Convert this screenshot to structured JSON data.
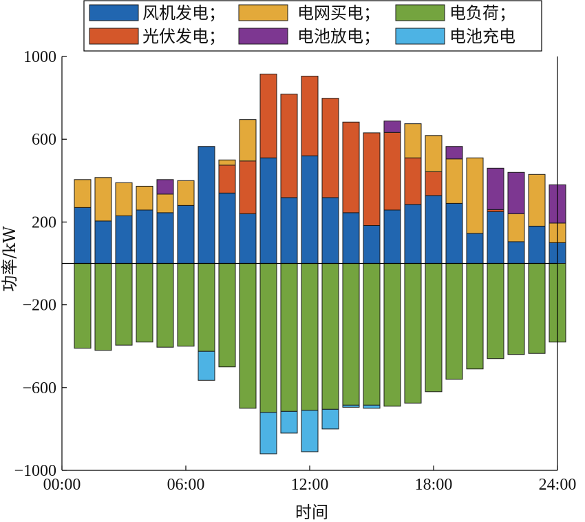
{
  "chart_data": {
    "type": "bar",
    "stacked": true,
    "xlabel": "时间",
    "ylabel": "功率/kW",
    "ylim": [
      -1000,
      1000
    ],
    "xlim": [
      0,
      24
    ],
    "yticks": [
      -1000,
      -600,
      -200,
      200,
      600,
      1000
    ],
    "ytick_labels": [
      "−1000",
      "−600",
      "−200",
      "200",
      "600",
      "1000"
    ],
    "xticks": [
      0,
      6,
      12,
      18,
      24
    ],
    "xtick_labels": [
      "00:00",
      "06:00",
      "12:00",
      "18:00",
      "24:00"
    ],
    "hours": [
      1,
      2,
      3,
      4,
      5,
      6,
      7,
      8,
      9,
      10,
      11,
      12,
      13,
      14,
      15,
      16,
      17,
      18,
      19,
      20,
      21,
      22,
      23,
      24
    ],
    "series": [
      {
        "name": "风机发电",
        "legend_label": "风机发电；",
        "color": "#2166b0",
        "values": [
          270,
          205,
          230,
          258,
          245,
          280,
          565,
          340,
          240,
          510,
          318,
          520,
          318,
          245,
          183,
          258,
          285,
          328,
          290,
          145,
          250,
          105,
          180,
          100
        ]
      },
      {
        "name": "光伏发电",
        "legend_label": "光伏发电；",
        "color": "#d4572a",
        "values": [
          0,
          0,
          0,
          0,
          0,
          0,
          0,
          135,
          255,
          405,
          500,
          385,
          480,
          438,
          448,
          375,
          225,
          115,
          0,
          0,
          10,
          0,
          0,
          0
        ]
      },
      {
        "name": "电网买电",
        "legend_label": "电网买电；",
        "color": "#e3a93a",
        "values": [
          135,
          210,
          160,
          115,
          90,
          120,
          0,
          25,
          200,
          0,
          0,
          0,
          0,
          0,
          0,
          0,
          165,
          175,
          215,
          365,
          0,
          135,
          250,
          95
        ]
      },
      {
        "name": "电池放电",
        "legend_label": "电池放电；",
        "color": "#7d3791",
        "values": [
          0,
          0,
          0,
          0,
          70,
          0,
          0,
          0,
          0,
          0,
          0,
          0,
          0,
          0,
          0,
          55,
          0,
          0,
          60,
          0,
          200,
          200,
          0,
          185
        ]
      },
      {
        "name": "电负荷",
        "legend_label": "电负荷；",
        "color": "#74a43f",
        "values": [
          -410,
          -420,
          -395,
          -380,
          -405,
          -400,
          -425,
          -500,
          -700,
          -720,
          -715,
          -710,
          -705,
          -685,
          -685,
          -690,
          -675,
          -620,
          -560,
          -510,
          -460,
          -440,
          -435,
          -380
        ]
      },
      {
        "name": "电池充电",
        "legend_label": "电池充电",
        "color": "#4db3e4",
        "values": [
          0,
          0,
          0,
          0,
          0,
          0,
          -140,
          0,
          0,
          -200,
          -105,
          -200,
          -95,
          -10,
          -15,
          0,
          0,
          0,
          0,
          0,
          0,
          0,
          0,
          0
        ]
      }
    ],
    "legend_order": [
      "风机发电",
      "电网买电",
      "电负荷",
      "光伏发电",
      "电池放电",
      "电池充电"
    ]
  }
}
